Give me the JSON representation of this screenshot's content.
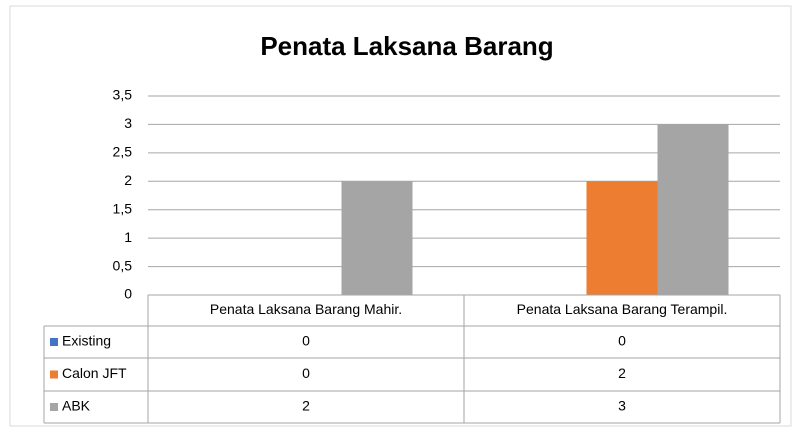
{
  "chart_data": {
    "type": "bar",
    "title": "Penata Laksana Barang",
    "categories": [
      "Penata Laksana Barang Mahir.",
      "Penata Laksana Barang Terampil."
    ],
    "series": [
      {
        "name": "Existing",
        "color": "#4472c4",
        "values": [
          0,
          0
        ]
      },
      {
        "name": "Calon JFT",
        "color": "#ed7d31",
        "values": [
          0,
          2
        ]
      },
      {
        "name": "ABK",
        "color": "#a5a5a5",
        "values": [
          2,
          3
        ]
      }
    ],
    "ylim": [
      0,
      3.5
    ],
    "yticks": [
      0,
      {
        "value": 0.5,
        "label": "0,5"
      },
      1,
      {
        "value": 1.5,
        "label": "1,5"
      },
      2,
      {
        "value": 2.5,
        "label": "2,5"
      },
      3,
      {
        "value": 3.5,
        "label": "3,5"
      }
    ],
    "grid": true
  }
}
